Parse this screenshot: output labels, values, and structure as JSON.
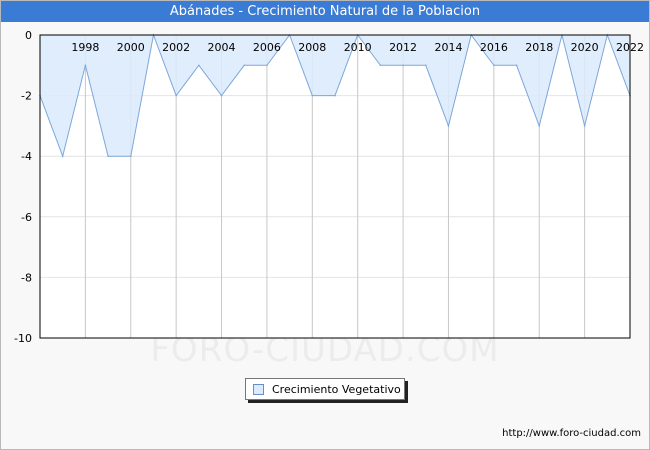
{
  "title": "Abánades - Crecimiento Natural de la Poblacion",
  "watermark": "FORO-CIUDAD.COM",
  "source": "http://www.foro-ciudad.com",
  "colors": {
    "title_bar": "#3a7bd5",
    "area_fill": "#dbeafd",
    "line": "#7da7d9"
  },
  "legend": {
    "label": "Crecimiento Vegetativo",
    "placement": "bottom-center"
  },
  "chart_data": {
    "type": "area",
    "title": "",
    "xlabel": "",
    "ylabel": "",
    "x": [
      1996,
      1997,
      1998,
      1999,
      2000,
      2001,
      2002,
      2003,
      2004,
      2005,
      2006,
      2007,
      2008,
      2009,
      2010,
      2011,
      2012,
      2013,
      2014,
      2015,
      2016,
      2017,
      2018,
      2019,
      2020,
      2021,
      2022
    ],
    "xticks": [
      1998,
      2000,
      2002,
      2004,
      2006,
      2008,
      2010,
      2012,
      2014,
      2016,
      2018,
      2020,
      2022
    ],
    "series": [
      {
        "name": "Crecimiento Vegetativo",
        "values": [
          -2,
          -4,
          -1,
          -4,
          -4,
          0,
          -2,
          -1,
          -2,
          -1,
          -1,
          0,
          -2,
          -2,
          0,
          -1,
          -1,
          -1,
          -3,
          0,
          -1,
          -1,
          -3,
          0,
          -3,
          0,
          -2
        ]
      }
    ],
    "ylim": [
      -10,
      0
    ],
    "yticks": [
      0,
      -2,
      -4,
      -6,
      -8,
      -10
    ],
    "grid": true
  }
}
